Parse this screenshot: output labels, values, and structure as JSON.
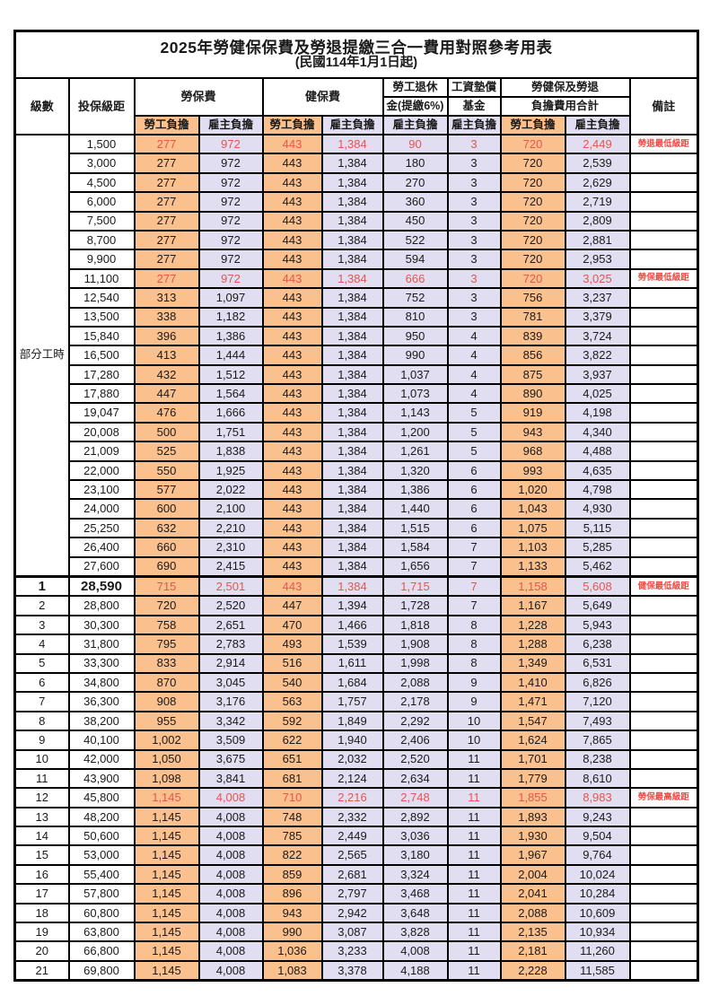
{
  "page": {
    "title": "2025年勞健保保費及勞退提繳三合一費用對照參考用表",
    "subtitle": "(民國114年1月1日起)"
  },
  "table": {
    "headers": {
      "level": "級數",
      "bracket": "投保級距",
      "labor_fee": "勞保費",
      "health_fee": "健保費",
      "pension_line1": "勞工退休",
      "pension_line2": "金(提繳6%)",
      "wage_fund_line1": "工資墊償",
      "wage_fund_line2": "基金",
      "total_line1": "勞健保及勞退",
      "total_line2": "負擔費用合計",
      "employee_share": "勞工負擔",
      "employer_share": "雇主負擔",
      "remark": "備註"
    },
    "section_label": "部分工時",
    "colors": {
      "employee_bg": "#FAC08E",
      "employer_bg": "#E0DEF0",
      "highlight_text": "#E6554E",
      "remark_text": "#F04A44"
    },
    "rows": [
      {
        "level": "",
        "bracket": "1,500",
        "values": [
          "277",
          "972",
          "443",
          "1,384",
          "90",
          "3",
          "720",
          "2,449"
        ],
        "remark": "勞退最低級距",
        "highlight": true,
        "emphasis": false
      },
      {
        "level": "",
        "bracket": "3,000",
        "values": [
          "277",
          "972",
          "443",
          "1,384",
          "180",
          "3",
          "720",
          "2,539"
        ],
        "remark": "",
        "highlight": false,
        "emphasis": false
      },
      {
        "level": "",
        "bracket": "4,500",
        "values": [
          "277",
          "972",
          "443",
          "1,384",
          "270",
          "3",
          "720",
          "2,629"
        ],
        "remark": "",
        "highlight": false,
        "emphasis": false
      },
      {
        "level": "",
        "bracket": "6,000",
        "values": [
          "277",
          "972",
          "443",
          "1,384",
          "360",
          "3",
          "720",
          "2,719"
        ],
        "remark": "",
        "highlight": false,
        "emphasis": false
      },
      {
        "level": "",
        "bracket": "7,500",
        "values": [
          "277",
          "972",
          "443",
          "1,384",
          "450",
          "3",
          "720",
          "2,809"
        ],
        "remark": "",
        "highlight": false,
        "emphasis": false
      },
      {
        "level": "",
        "bracket": "8,700",
        "values": [
          "277",
          "972",
          "443",
          "1,384",
          "522",
          "3",
          "720",
          "2,881"
        ],
        "remark": "",
        "highlight": false,
        "emphasis": false
      },
      {
        "level": "",
        "bracket": "9,900",
        "values": [
          "277",
          "972",
          "443",
          "1,384",
          "594",
          "3",
          "720",
          "2,953"
        ],
        "remark": "",
        "highlight": false,
        "emphasis": false
      },
      {
        "level": "",
        "bracket": "11,100",
        "values": [
          "277",
          "972",
          "443",
          "1,384",
          "666",
          "3",
          "720",
          "3,025"
        ],
        "remark": "勞保最低級距",
        "highlight": true,
        "emphasis": false
      },
      {
        "level": "",
        "bracket": "12,540",
        "values": [
          "313",
          "1,097",
          "443",
          "1,384",
          "752",
          "3",
          "756",
          "3,237"
        ],
        "remark": "",
        "highlight": false,
        "emphasis": false
      },
      {
        "level": "",
        "bracket": "13,500",
        "values": [
          "338",
          "1,182",
          "443",
          "1,384",
          "810",
          "3",
          "781",
          "3,379"
        ],
        "remark": "",
        "highlight": false,
        "emphasis": false
      },
      {
        "level": "",
        "bracket": "15,840",
        "values": [
          "396",
          "1,386",
          "443",
          "1,384",
          "950",
          "4",
          "839",
          "3,724"
        ],
        "remark": "",
        "highlight": false,
        "emphasis": false
      },
      {
        "level": "",
        "bracket": "16,500",
        "values": [
          "413",
          "1,444",
          "443",
          "1,384",
          "990",
          "4",
          "856",
          "3,822"
        ],
        "remark": "",
        "highlight": false,
        "emphasis": false
      },
      {
        "level": "",
        "bracket": "17,280",
        "values": [
          "432",
          "1,512",
          "443",
          "1,384",
          "1,037",
          "4",
          "875",
          "3,937"
        ],
        "remark": "",
        "highlight": false,
        "emphasis": false
      },
      {
        "level": "",
        "bracket": "17,880",
        "values": [
          "447",
          "1,564",
          "443",
          "1,384",
          "1,073",
          "4",
          "890",
          "4,025"
        ],
        "remark": "",
        "highlight": false,
        "emphasis": false
      },
      {
        "level": "",
        "bracket": "19,047",
        "values": [
          "476",
          "1,666",
          "443",
          "1,384",
          "1,143",
          "5",
          "919",
          "4,198"
        ],
        "remark": "",
        "highlight": false,
        "emphasis": false
      },
      {
        "level": "",
        "bracket": "20,008",
        "values": [
          "500",
          "1,751",
          "443",
          "1,384",
          "1,200",
          "5",
          "943",
          "4,340"
        ],
        "remark": "",
        "highlight": false,
        "emphasis": false
      },
      {
        "level": "",
        "bracket": "21,009",
        "values": [
          "525",
          "1,838",
          "443",
          "1,384",
          "1,261",
          "5",
          "968",
          "4,488"
        ],
        "remark": "",
        "highlight": false,
        "emphasis": false
      },
      {
        "level": "",
        "bracket": "22,000",
        "values": [
          "550",
          "1,925",
          "443",
          "1,384",
          "1,320",
          "6",
          "993",
          "4,635"
        ],
        "remark": "",
        "highlight": false,
        "emphasis": false
      },
      {
        "level": "",
        "bracket": "23,100",
        "values": [
          "577",
          "2,022",
          "443",
          "1,384",
          "1,386",
          "6",
          "1,020",
          "4,798"
        ],
        "remark": "",
        "highlight": false,
        "emphasis": false
      },
      {
        "level": "",
        "bracket": "24,000",
        "values": [
          "600",
          "2,100",
          "443",
          "1,384",
          "1,440",
          "6",
          "1,043",
          "4,930"
        ],
        "remark": "",
        "highlight": false,
        "emphasis": false
      },
      {
        "level": "",
        "bracket": "25,250",
        "values": [
          "632",
          "2,210",
          "443",
          "1,384",
          "1,515",
          "6",
          "1,075",
          "5,115"
        ],
        "remark": "",
        "highlight": false,
        "emphasis": false
      },
      {
        "level": "",
        "bracket": "26,400",
        "values": [
          "660",
          "2,310",
          "443",
          "1,384",
          "1,584",
          "7",
          "1,103",
          "5,285"
        ],
        "remark": "",
        "highlight": false,
        "emphasis": false
      },
      {
        "level": "",
        "bracket": "27,600",
        "values": [
          "690",
          "2,415",
          "443",
          "1,384",
          "1,656",
          "7",
          "1,133",
          "5,462"
        ],
        "remark": "",
        "highlight": false,
        "emphasis": false
      },
      {
        "level": "1",
        "bracket": "28,590",
        "values": [
          "715",
          "2,501",
          "443",
          "1,384",
          "1,715",
          "7",
          "1,158",
          "5,608"
        ],
        "remark": "健保最低級距",
        "highlight": true,
        "emphasis": true
      },
      {
        "level": "2",
        "bracket": "28,800",
        "values": [
          "720",
          "2,520",
          "447",
          "1,394",
          "1,728",
          "7",
          "1,167",
          "5,649"
        ],
        "remark": "",
        "highlight": false,
        "emphasis": false
      },
      {
        "level": "3",
        "bracket": "30,300",
        "values": [
          "758",
          "2,651",
          "470",
          "1,466",
          "1,818",
          "8",
          "1,228",
          "5,943"
        ],
        "remark": "",
        "highlight": false,
        "emphasis": false
      },
      {
        "level": "4",
        "bracket": "31,800",
        "values": [
          "795",
          "2,783",
          "493",
          "1,539",
          "1,908",
          "8",
          "1,288",
          "6,238"
        ],
        "remark": "",
        "highlight": false,
        "emphasis": false
      },
      {
        "level": "5",
        "bracket": "33,300",
        "values": [
          "833",
          "2,914",
          "516",
          "1,611",
          "1,998",
          "8",
          "1,349",
          "6,531"
        ],
        "remark": "",
        "highlight": false,
        "emphasis": false
      },
      {
        "level": "6",
        "bracket": "34,800",
        "values": [
          "870",
          "3,045",
          "540",
          "1,684",
          "2,088",
          "9",
          "1,410",
          "6,826"
        ],
        "remark": "",
        "highlight": false,
        "emphasis": false
      },
      {
        "level": "7",
        "bracket": "36,300",
        "values": [
          "908",
          "3,176",
          "563",
          "1,757",
          "2,178",
          "9",
          "1,471",
          "7,120"
        ],
        "remark": "",
        "highlight": false,
        "emphasis": false
      },
      {
        "level": "8",
        "bracket": "38,200",
        "values": [
          "955",
          "3,342",
          "592",
          "1,849",
          "2,292",
          "10",
          "1,547",
          "7,493"
        ],
        "remark": "",
        "highlight": false,
        "emphasis": false
      },
      {
        "level": "9",
        "bracket": "40,100",
        "values": [
          "1,002",
          "3,509",
          "622",
          "1,940",
          "2,406",
          "10",
          "1,624",
          "7,865"
        ],
        "remark": "",
        "highlight": false,
        "emphasis": false
      },
      {
        "level": "10",
        "bracket": "42,000",
        "values": [
          "1,050",
          "3,675",
          "651",
          "2,032",
          "2,520",
          "11",
          "1,701",
          "8,238"
        ],
        "remark": "",
        "highlight": false,
        "emphasis": false
      },
      {
        "level": "11",
        "bracket": "43,900",
        "values": [
          "1,098",
          "3,841",
          "681",
          "2,124",
          "2,634",
          "11",
          "1,779",
          "8,610"
        ],
        "remark": "",
        "highlight": false,
        "emphasis": false
      },
      {
        "level": "12",
        "bracket": "45,800",
        "values": [
          "1,145",
          "4,008",
          "710",
          "2,216",
          "2,748",
          "11",
          "1,855",
          "8,983"
        ],
        "remark": "勞保最高級距",
        "highlight": true,
        "emphasis": false
      },
      {
        "level": "13",
        "bracket": "48,200",
        "values": [
          "1,145",
          "4,008",
          "748",
          "2,332",
          "2,892",
          "11",
          "1,893",
          "9,243"
        ],
        "remark": "",
        "highlight": false,
        "emphasis": false
      },
      {
        "level": "14",
        "bracket": "50,600",
        "values": [
          "1,145",
          "4,008",
          "785",
          "2,449",
          "3,036",
          "11",
          "1,930",
          "9,504"
        ],
        "remark": "",
        "highlight": false,
        "emphasis": false
      },
      {
        "level": "15",
        "bracket": "53,000",
        "values": [
          "1,145",
          "4,008",
          "822",
          "2,565",
          "3,180",
          "11",
          "1,967",
          "9,764"
        ],
        "remark": "",
        "highlight": false,
        "emphasis": false
      },
      {
        "level": "16",
        "bracket": "55,400",
        "values": [
          "1,145",
          "4,008",
          "859",
          "2,681",
          "3,324",
          "11",
          "2,004",
          "10,024"
        ],
        "remark": "",
        "highlight": false,
        "emphasis": false
      },
      {
        "level": "17",
        "bracket": "57,800",
        "values": [
          "1,145",
          "4,008",
          "896",
          "2,797",
          "3,468",
          "11",
          "2,041",
          "10,284"
        ],
        "remark": "",
        "highlight": false,
        "emphasis": false
      },
      {
        "level": "18",
        "bracket": "60,800",
        "values": [
          "1,145",
          "4,008",
          "943",
          "2,942",
          "3,648",
          "11",
          "2,088",
          "10,609"
        ],
        "remark": "",
        "highlight": false,
        "emphasis": false
      },
      {
        "level": "19",
        "bracket": "63,800",
        "values": [
          "1,145",
          "4,008",
          "990",
          "3,087",
          "3,828",
          "11",
          "2,135",
          "10,934"
        ],
        "remark": "",
        "highlight": false,
        "emphasis": false
      },
      {
        "level": "20",
        "bracket": "66,800",
        "values": [
          "1,145",
          "4,008",
          "1,036",
          "3,233",
          "4,008",
          "11",
          "2,181",
          "11,260"
        ],
        "remark": "",
        "highlight": false,
        "emphasis": false
      },
      {
        "level": "21",
        "bracket": "69,800",
        "values": [
          "1,145",
          "4,008",
          "1,083",
          "3,378",
          "4,188",
          "11",
          "2,228",
          "11,585"
        ],
        "remark": "",
        "highlight": false,
        "emphasis": false
      }
    ]
  }
}
